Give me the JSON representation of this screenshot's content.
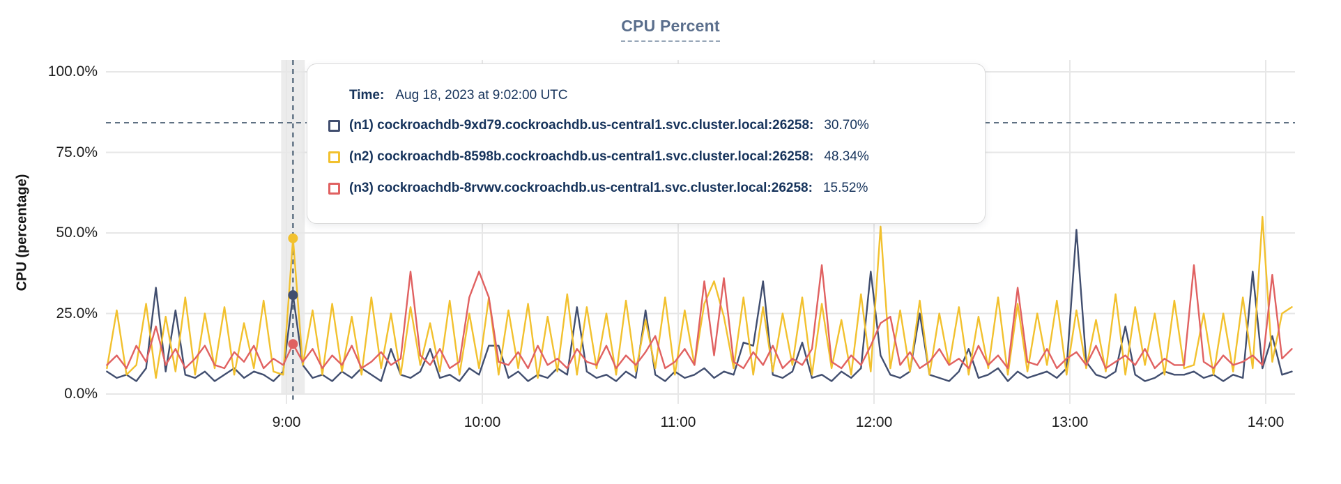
{
  "title": "CPU Percent",
  "y_axis": {
    "label": "CPU (percentage)",
    "ticks": [
      "100.0%",
      "75.0%",
      "50.0%",
      "25.0%",
      "0.0%"
    ]
  },
  "x_axis": {
    "ticks": [
      "9:00",
      "10:00",
      "11:00",
      "12:00",
      "13:00",
      "14:00"
    ]
  },
  "tooltip": {
    "time_label": "Time:",
    "time_value": "Aug 18, 2023 at 9:02:00 UTC",
    "rows": [
      {
        "label": "(n1) cockroachdb-9xd79.cockroachdb.us-central1.svc.cluster.local:26258:",
        "value": "30.70%",
        "color": "#414e6f"
      },
      {
        "label": "(n2) cockroachdb-8598b.cockroachdb.us-central1.svc.cluster.local:26258:",
        "value": "48.34%",
        "color": "#f2c12e"
      },
      {
        "label": "(n3) cockroachdb-8rvwv.cockroachdb.us-central1.svc.cluster.local:26258:",
        "value": "15.52%",
        "color": "#e06161"
      }
    ]
  },
  "colors": {
    "grid": "#e7e7e7",
    "crosshair": "#5f7183",
    "hover_band": "#ececec",
    "title": "#5a6e8c",
    "tooltip_text": "#16335b"
  },
  "chart_data": {
    "type": "line",
    "title": "CPU Percent",
    "ylabel": "CPU (percentage)",
    "ylim": [
      0,
      100
    ],
    "y_ticks_percent": [
      0,
      25,
      50,
      75,
      100
    ],
    "x_tick_labels": [
      "9:00",
      "10:00",
      "11:00",
      "12:00",
      "13:00",
      "14:00"
    ],
    "x_tick_minutes": [
      540,
      600,
      660,
      720,
      780,
      840
    ],
    "start_minutes": 485,
    "step_minutes": 3,
    "grid": true,
    "legend_position": "tooltip-overlay",
    "cursor": {
      "index": 19,
      "time": "9:02",
      "time_full": "Aug 18, 2023 at 9:02:00 UTC",
      "hline_percent": 84.2,
      "values": [
        30.7,
        48.34,
        15.52
      ]
    },
    "series": [
      {
        "name": "(n1) cockroachdb-9xd79.cockroachdb.us-central1.svc.cluster.local:26258",
        "color": "#414e6f",
        "values": [
          7,
          5,
          6,
          4,
          8,
          33,
          7,
          26,
          6,
          5,
          7,
          4,
          6,
          8,
          5,
          7,
          6,
          4,
          7,
          30.7,
          9,
          5,
          6,
          4,
          7,
          5,
          8,
          6,
          4,
          14,
          6,
          5,
          7,
          14,
          5,
          6,
          4,
          8,
          6,
          15,
          15,
          5,
          7,
          4,
          6,
          5,
          8,
          6,
          27,
          7,
          5,
          6,
          4,
          7,
          5,
          26,
          6,
          4,
          7,
          5,
          6,
          8,
          5,
          7,
          6,
          16,
          15,
          35,
          6,
          5,
          7,
          16,
          5,
          6,
          4,
          7,
          5,
          8,
          38,
          12,
          6,
          5,
          7,
          25,
          6,
          5,
          4,
          7,
          14,
          5,
          6,
          8,
          4,
          7,
          5,
          6,
          7,
          5,
          8,
          51,
          10,
          6,
          5,
          7,
          21,
          6,
          4,
          5,
          7,
          6,
          6,
          7,
          5,
          6,
          4,
          6,
          5,
          38,
          8,
          18,
          6,
          7
        ]
      },
      {
        "name": "(n2) cockroachdb-8598b.cockroachdb.us-central1.svc.cluster.local:26258",
        "color": "#f2c12e",
        "values": [
          8,
          26,
          6,
          9,
          28,
          5,
          24,
          7,
          30,
          6,
          25,
          8,
          27,
          6,
          22,
          8,
          29,
          7,
          6,
          48.34,
          9,
          26,
          6,
          28,
          7,
          24,
          6,
          30,
          8,
          25,
          6,
          27,
          9,
          22,
          7,
          29,
          6,
          25,
          8,
          30,
          6,
          26,
          8,
          28,
          5,
          24,
          7,
          31,
          6,
          27,
          8,
          25,
          6,
          29,
          7,
          23,
          8,
          30,
          6,
          26,
          9,
          28,
          35,
          24,
          8,
          30,
          6,
          27,
          7,
          25,
          9,
          30,
          6,
          28,
          8,
          23,
          6,
          31,
          7,
          52,
          8,
          26,
          7,
          29,
          6,
          25,
          9,
          27,
          6,
          24,
          8,
          30,
          6,
          28,
          7,
          25,
          9,
          29,
          6,
          26,
          8,
          23,
          7,
          31,
          6,
          27,
          9,
          25,
          6,
          29,
          8,
          9,
          25,
          6,
          25,
          7,
          30,
          8,
          55,
          10,
          25,
          27
        ]
      },
      {
        "name": "(n3) cockroachdb-8rvwv.cockroachdb.us-central1.svc.cluster.local:26258",
        "color": "#e06161",
        "values": [
          9,
          12,
          8,
          15,
          10,
          21,
          9,
          14,
          8,
          11,
          15,
          9,
          8,
          13,
          10,
          15,
          8,
          11,
          9,
          15.52,
          10,
          14,
          8,
          12,
          9,
          15,
          8,
          10,
          13,
          9,
          11,
          38,
          12,
          9,
          14,
          8,
          10,
          30,
          38,
          30,
          10,
          9,
          13,
          8,
          15,
          9,
          11,
          8,
          14,
          10,
          9,
          15,
          8,
          12,
          9,
          13,
          18,
          8,
          10,
          14,
          9,
          35,
          12,
          36,
          10,
          8,
          13,
          9,
          15,
          8,
          11,
          9,
          14,
          40,
          10,
          8,
          12,
          9,
          15,
          22,
          24,
          9,
          13,
          8,
          10,
          14,
          9,
          11,
          8,
          15,
          9,
          12,
          8,
          33,
          10,
          9,
          14,
          8,
          11,
          13,
          9,
          15,
          8,
          10,
          12,
          9,
          14,
          8,
          11,
          9,
          9,
          40,
          10,
          8,
          12,
          9,
          10,
          12,
          9,
          37,
          11,
          14
        ]
      }
    ]
  }
}
